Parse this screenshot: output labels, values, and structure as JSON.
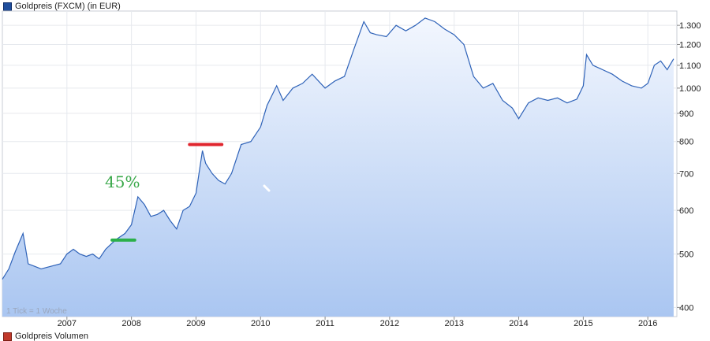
{
  "legend": {
    "label": "Goldpreis (FXCM) (in EUR)",
    "color": "#1f4e9c"
  },
  "legend2": {
    "label": "Goldpreis Volumen",
    "color": "#c0392b"
  },
  "tick_note": "1 Tick = 1 Woche",
  "annotation": {
    "text": "45%",
    "color": "#3aa84a"
  },
  "chart_data": {
    "type": "area",
    "title": "",
    "xlabel": "",
    "ylabel": "",
    "y_scale": "log",
    "ylim": [
      385,
      1380
    ],
    "xlim": [
      2006.0,
      2016.45
    ],
    "x_ticks": [
      2007,
      2008,
      2009,
      2010,
      2011,
      2012,
      2013,
      2014,
      2015,
      2016
    ],
    "y_ticks": [
      400,
      500,
      600,
      700,
      800,
      900,
      1000,
      1100,
      1200,
      1300
    ],
    "y_tick_labels": [
      "400",
      "500",
      "600",
      "700",
      "800",
      "900",
      "1.000",
      "1.100",
      "1.200",
      "1.300"
    ],
    "grid": true,
    "legend_position": "top-left",
    "line_color": "#2e62b8",
    "series": [
      {
        "name": "Goldpreis (FXCM) (in EUR)",
        "x": [
          2006.0,
          2006.1,
          2006.2,
          2006.32,
          2006.4,
          2006.5,
          2006.6,
          2006.75,
          2006.9,
          2007.0,
          2007.1,
          2007.2,
          2007.3,
          2007.4,
          2007.5,
          2007.6,
          2007.75,
          2007.9,
          2008.0,
          2008.1,
          2008.2,
          2008.3,
          2008.4,
          2008.5,
          2008.6,
          2008.7,
          2008.8,
          2008.9,
          2009.0,
          2009.1,
          2009.15,
          2009.25,
          2009.35,
          2009.45,
          2009.55,
          2009.7,
          2009.85,
          2010.0,
          2010.1,
          2010.25,
          2010.35,
          2010.5,
          2010.65,
          2010.8,
          2011.0,
          2011.15,
          2011.3,
          2011.45,
          2011.6,
          2011.7,
          2011.8,
          2011.95,
          2012.1,
          2012.25,
          2012.4,
          2012.55,
          2012.7,
          2012.85,
          2013.0,
          2013.15,
          2013.3,
          2013.45,
          2013.6,
          2013.75,
          2013.9,
          2014.0,
          2014.15,
          2014.3,
          2014.45,
          2014.6,
          2014.75,
          2014.9,
          2015.0,
          2015.05,
          2015.15,
          2015.3,
          2015.45,
          2015.6,
          2015.75,
          2015.9,
          2016.0,
          2016.1,
          2016.2,
          2016.3,
          2016.4
        ],
        "values": [
          450,
          470,
          505,
          545,
          480,
          475,
          470,
          475,
          480,
          500,
          510,
          500,
          495,
          500,
          490,
          510,
          530,
          545,
          565,
          635,
          615,
          585,
          590,
          600,
          575,
          555,
          600,
          610,
          645,
          770,
          730,
          700,
          680,
          670,
          700,
          790,
          800,
          850,
          930,
          1010,
          950,
          1000,
          1020,
          1060,
          1000,
          1030,
          1050,
          1180,
          1320,
          1260,
          1250,
          1240,
          1300,
          1270,
          1300,
          1340,
          1320,
          1280,
          1250,
          1200,
          1050,
          1000,
          1020,
          950,
          920,
          880,
          940,
          960,
          950,
          960,
          940,
          955,
          1010,
          1150,
          1100,
          1080,
          1060,
          1030,
          1010,
          1000,
          1020,
          1100,
          1120,
          1080,
          1130
        ]
      }
    ],
    "annotations": [
      {
        "label": "",
        "type": "hline",
        "y": 530,
        "x_from": 2007.7,
        "x_to": 2008.05,
        "color": "#2bb04a"
      },
      {
        "label": "",
        "type": "hline",
        "y": 790,
        "x_from": 2008.9,
        "x_to": 2009.4,
        "color": "#e0262e"
      }
    ]
  }
}
